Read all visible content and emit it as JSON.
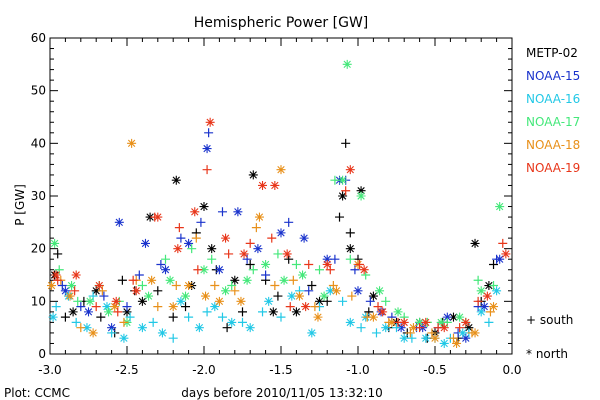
{
  "chart_data": {
    "type": "scatter",
    "title": "Hemispheric Power [GW]",
    "xlabel": "days before 2010/11/05 13:32:10",
    "ylabel": "P [GW]",
    "xlim": [
      -3.0,
      0.0
    ],
    "ylim": [
      0,
      60
    ],
    "xticks": [
      "-3.0",
      "-2.5",
      "-2.0",
      "-1.5",
      "-1.0",
      "-0.5",
      "0.0"
    ],
    "yticks": [
      "0",
      "10",
      "20",
      "30",
      "40",
      "50",
      "60"
    ],
    "grid": false,
    "legend_position": "right",
    "marker_legend": [
      {
        "label": "+ south",
        "symbol": "plus",
        "meaning": "south"
      },
      {
        "label": "* north",
        "symbol": "asterisk",
        "meaning": "north"
      }
    ],
    "series": [
      {
        "name": "METP-02",
        "color": "#000000",
        "south": [
          [
            -2.95,
            19
          ],
          [
            -2.9,
            7
          ],
          [
            -2.78,
            10
          ],
          [
            -2.67,
            7
          ],
          [
            -2.58,
            4
          ],
          [
            -2.53,
            14
          ],
          [
            -2.45,
            12
          ],
          [
            -2.3,
            12
          ],
          [
            -2.2,
            7
          ],
          [
            -2.12,
            9
          ],
          [
            -2.05,
            23
          ],
          [
            -1.92,
            16
          ],
          [
            -1.85,
            5
          ],
          [
            -1.75,
            8
          ],
          [
            -1.7,
            17
          ],
          [
            -1.6,
            14
          ],
          [
            -1.52,
            11
          ],
          [
            -1.45,
            18
          ],
          [
            -1.3,
            13
          ],
          [
            -1.2,
            10
          ],
          [
            -1.12,
            26
          ],
          [
            -1.08,
            40
          ],
          [
            -1.05,
            23
          ],
          [
            -1.0,
            18
          ],
          [
            -0.93,
            8
          ],
          [
            -0.8,
            5
          ],
          [
            -0.68,
            4
          ],
          [
            -0.55,
            3
          ],
          [
            -0.45,
            6
          ],
          [
            -0.35,
            3
          ],
          [
            -0.2,
            10
          ],
          [
            -0.12,
            17
          ]
        ],
        "north": [
          [
            -2.97,
            15
          ],
          [
            -2.85,
            8
          ],
          [
            -2.7,
            12
          ],
          [
            -2.5,
            8
          ],
          [
            -2.4,
            10
          ],
          [
            -2.35,
            26
          ],
          [
            -2.18,
            33
          ],
          [
            -2.08,
            13
          ],
          [
            -2.0,
            28
          ],
          [
            -1.95,
            20
          ],
          [
            -1.8,
            14
          ],
          [
            -1.68,
            34
          ],
          [
            -1.55,
            8
          ],
          [
            -1.4,
            8
          ],
          [
            -1.25,
            10
          ],
          [
            -1.1,
            30
          ],
          [
            -1.05,
            20
          ],
          [
            -0.98,
            31
          ],
          [
            -0.9,
            11
          ],
          [
            -0.75,
            6
          ],
          [
            -0.6,
            6
          ],
          [
            -0.5,
            4
          ],
          [
            -0.38,
            7
          ],
          [
            -0.28,
            5
          ],
          [
            -0.24,
            21
          ],
          [
            -0.15,
            13
          ]
        ]
      },
      {
        "name": "NOAA-15",
        "color": "#1a33cc",
        "south": [
          [
            -2.92,
            13
          ],
          [
            -2.8,
            9
          ],
          [
            -2.65,
            11
          ],
          [
            -2.5,
            9
          ],
          [
            -2.42,
            15
          ],
          [
            -2.28,
            17
          ],
          [
            -2.15,
            22
          ],
          [
            -2.02,
            25
          ],
          [
            -1.97,
            42
          ],
          [
            -1.88,
            27
          ],
          [
            -1.72,
            18
          ],
          [
            -1.6,
            15
          ],
          [
            -1.45,
            25
          ],
          [
            -1.32,
            12
          ],
          [
            -1.15,
            18
          ],
          [
            -1.08,
            33
          ],
          [
            -1.02,
            16
          ],
          [
            -0.92,
            10
          ],
          [
            -0.78,
            7
          ],
          [
            -0.62,
            5
          ],
          [
            -0.48,
            5
          ],
          [
            -0.35,
            4
          ],
          [
            -0.22,
            9
          ],
          [
            -0.1,
            18
          ]
        ],
        "north": [
          [
            -2.9,
            12
          ],
          [
            -2.75,
            8
          ],
          [
            -2.6,
            5
          ],
          [
            -2.55,
            25
          ],
          [
            -2.38,
            21
          ],
          [
            -2.25,
            16
          ],
          [
            -2.1,
            21
          ],
          [
            -1.98,
            39
          ],
          [
            -1.9,
            16
          ],
          [
            -1.78,
            27
          ],
          [
            -1.65,
            20
          ],
          [
            -1.5,
            23
          ],
          [
            -1.35,
            22
          ],
          [
            -1.2,
            18
          ],
          [
            -1.12,
            33
          ],
          [
            -1.0,
            12
          ],
          [
            -0.85,
            8
          ],
          [
            -0.72,
            5
          ],
          [
            -0.58,
            5
          ],
          [
            -0.42,
            7
          ],
          [
            -0.3,
            3
          ],
          [
            -0.18,
            9
          ],
          [
            -0.08,
            18
          ]
        ]
      },
      {
        "name": "NOAA-16",
        "color": "#22c8e6",
        "south": [
          [
            -2.96,
            9
          ],
          [
            -2.83,
            6
          ],
          [
            -2.72,
            11
          ],
          [
            -2.6,
            4
          ],
          [
            -2.48,
            7
          ],
          [
            -2.33,
            6
          ],
          [
            -2.2,
            3
          ],
          [
            -2.1,
            7
          ],
          [
            -1.98,
            8
          ],
          [
            -1.88,
            7
          ],
          [
            -1.75,
            6
          ],
          [
            -1.62,
            8
          ],
          [
            -1.5,
            7
          ],
          [
            -1.38,
            12
          ],
          [
            -1.25,
            9
          ],
          [
            -1.1,
            10
          ],
          [
            -0.98,
            5
          ],
          [
            -0.88,
            4
          ],
          [
            -0.75,
            5
          ],
          [
            -0.65,
            3
          ],
          [
            -0.5,
            3
          ],
          [
            -0.4,
            3
          ],
          [
            -0.28,
            4
          ],
          [
            -0.15,
            6
          ]
        ],
        "north": [
          [
            -2.98,
            7
          ],
          [
            -2.88,
            11
          ],
          [
            -2.76,
            5
          ],
          [
            -2.63,
            9
          ],
          [
            -2.52,
            3
          ],
          [
            -2.4,
            5
          ],
          [
            -2.27,
            4
          ],
          [
            -2.15,
            10
          ],
          [
            -2.03,
            5
          ],
          [
            -1.93,
            9
          ],
          [
            -1.82,
            6
          ],
          [
            -1.7,
            5
          ],
          [
            -1.58,
            10
          ],
          [
            -1.43,
            11
          ],
          [
            -1.3,
            4
          ],
          [
            -1.18,
            12
          ],
          [
            -1.05,
            6
          ],
          [
            -0.95,
            7
          ],
          [
            -0.82,
            5
          ],
          [
            -0.7,
            3
          ],
          [
            -0.56,
            3
          ],
          [
            -0.44,
            2
          ],
          [
            -0.32,
            4
          ],
          [
            -0.2,
            8
          ],
          [
            -0.1,
            12
          ]
        ]
      },
      {
        "name": "NOAA-17",
        "color": "#44e87a",
        "south": [
          [
            -2.94,
            16
          ],
          [
            -2.82,
            10
          ],
          [
            -2.68,
            13
          ],
          [
            -2.55,
            10
          ],
          [
            -2.4,
            13
          ],
          [
            -2.25,
            18
          ],
          [
            -2.08,
            20
          ],
          [
            -1.95,
            18
          ],
          [
            -1.82,
            13
          ],
          [
            -1.68,
            16
          ],
          [
            -1.52,
            19
          ],
          [
            -1.4,
            17
          ],
          [
            -1.25,
            16
          ],
          [
            -1.15,
            33
          ],
          [
            -1.05,
            18
          ],
          [
            -0.95,
            15
          ],
          [
            -0.82,
            10
          ],
          [
            -0.7,
            7
          ],
          [
            -0.55,
            6
          ],
          [
            -0.42,
            6
          ],
          [
            -0.3,
            6
          ],
          [
            -0.22,
            14
          ],
          [
            -0.12,
            13
          ]
        ],
        "north": [
          [
            -2.97,
            21
          ],
          [
            -2.86,
            13
          ],
          [
            -2.74,
            10
          ],
          [
            -2.62,
            8
          ],
          [
            -2.5,
            6
          ],
          [
            -2.36,
            11
          ],
          [
            -2.22,
            14
          ],
          [
            -2.12,
            11
          ],
          [
            -2.0,
            16
          ],
          [
            -1.86,
            12
          ],
          [
            -1.72,
            14
          ],
          [
            -1.6,
            17
          ],
          [
            -1.48,
            14
          ],
          [
            -1.36,
            15
          ],
          [
            -1.22,
            11
          ],
          [
            -1.1,
            33
          ],
          [
            -1.07,
            55
          ],
          [
            -0.98,
            30
          ],
          [
            -0.86,
            12
          ],
          [
            -0.74,
            8
          ],
          [
            -0.6,
            6
          ],
          [
            -0.46,
            6
          ],
          [
            -0.34,
            7
          ],
          [
            -0.2,
            12
          ],
          [
            -0.08,
            28
          ]
        ]
      },
      {
        "name": "NOAA-18",
        "color": "#e8901a",
        "south": [
          [
            -2.93,
            14
          ],
          [
            -2.8,
            5
          ],
          [
            -2.66,
            12
          ],
          [
            -2.52,
            6
          ],
          [
            -2.44,
            14
          ],
          [
            -2.3,
            9
          ],
          [
            -2.18,
            13
          ],
          [
            -2.05,
            22
          ],
          [
            -1.93,
            13
          ],
          [
            -1.8,
            12
          ],
          [
            -1.66,
            24
          ],
          [
            -1.54,
            13
          ],
          [
            -1.42,
            14
          ],
          [
            -1.28,
            9
          ],
          [
            -1.16,
            13
          ],
          [
            -1.04,
            11
          ],
          [
            -0.94,
            7
          ],
          [
            -0.8,
            6
          ],
          [
            -0.66,
            4
          ],
          [
            -0.52,
            4
          ],
          [
            -0.38,
            3
          ],
          [
            -0.26,
            4
          ],
          [
            -0.14,
            8
          ]
        ],
        "north": [
          [
            -2.99,
            13
          ],
          [
            -2.87,
            11
          ],
          [
            -2.72,
            4
          ],
          [
            -2.58,
            9
          ],
          [
            -2.47,
            40
          ],
          [
            -2.34,
            14
          ],
          [
            -2.2,
            9
          ],
          [
            -2.1,
            13
          ],
          [
            -1.99,
            11
          ],
          [
            -1.9,
            10
          ],
          [
            -1.76,
            10
          ],
          [
            -1.64,
            26
          ],
          [
            -1.5,
            35
          ],
          [
            -1.38,
            11
          ],
          [
            -1.26,
            7
          ],
          [
            -1.14,
            12
          ],
          [
            -1.0,
            17
          ],
          [
            -0.9,
            7
          ],
          [
            -0.78,
            6
          ],
          [
            -0.64,
            5
          ],
          [
            -0.5,
            3
          ],
          [
            -0.36,
            2
          ],
          [
            -0.24,
            4
          ],
          [
            -0.12,
            9
          ]
        ]
      },
      {
        "name": "NOAA-19",
        "color": "#e8361a",
        "south": [
          [
            -2.95,
            14
          ],
          [
            -2.84,
            12
          ],
          [
            -2.7,
            9
          ],
          [
            -2.56,
            8
          ],
          [
            -2.46,
            14
          ],
          [
            -2.32,
            26
          ],
          [
            -2.16,
            24
          ],
          [
            -2.04,
            16
          ],
          [
            -1.98,
            35
          ],
          [
            -1.84,
            19
          ],
          [
            -1.7,
            21
          ],
          [
            -1.56,
            22
          ],
          [
            -1.44,
            9
          ],
          [
            -1.32,
            17
          ],
          [
            -1.18,
            16
          ],
          [
            -1.08,
            31
          ],
          [
            -0.99,
            17
          ],
          [
            -0.87,
            9
          ],
          [
            -0.74,
            6
          ],
          [
            -0.6,
            5
          ],
          [
            -0.48,
            5
          ],
          [
            -0.34,
            5
          ],
          [
            -0.22,
            10
          ],
          [
            -0.06,
            21
          ]
        ],
        "north": [
          [
            -2.96,
            15
          ],
          [
            -2.83,
            15
          ],
          [
            -2.68,
            13
          ],
          [
            -2.57,
            10
          ],
          [
            -2.44,
            12
          ],
          [
            -2.3,
            26
          ],
          [
            -2.17,
            20
          ],
          [
            -2.06,
            27
          ],
          [
            -1.96,
            44
          ],
          [
            -1.86,
            22
          ],
          [
            -1.74,
            19
          ],
          [
            -1.62,
            32
          ],
          [
            -1.54,
            32
          ],
          [
            -1.46,
            19
          ],
          [
            -1.34,
            9
          ],
          [
            -1.2,
            17
          ],
          [
            -1.05,
            35
          ],
          [
            -0.96,
            16
          ],
          [
            -0.84,
            8
          ],
          [
            -0.7,
            6
          ],
          [
            -0.56,
            6
          ],
          [
            -0.44,
            5
          ],
          [
            -0.3,
            6
          ],
          [
            -0.16,
            11
          ],
          [
            -0.04,
            19
          ]
        ]
      }
    ]
  },
  "footer": {
    "credit": "Plot: CCMC"
  }
}
